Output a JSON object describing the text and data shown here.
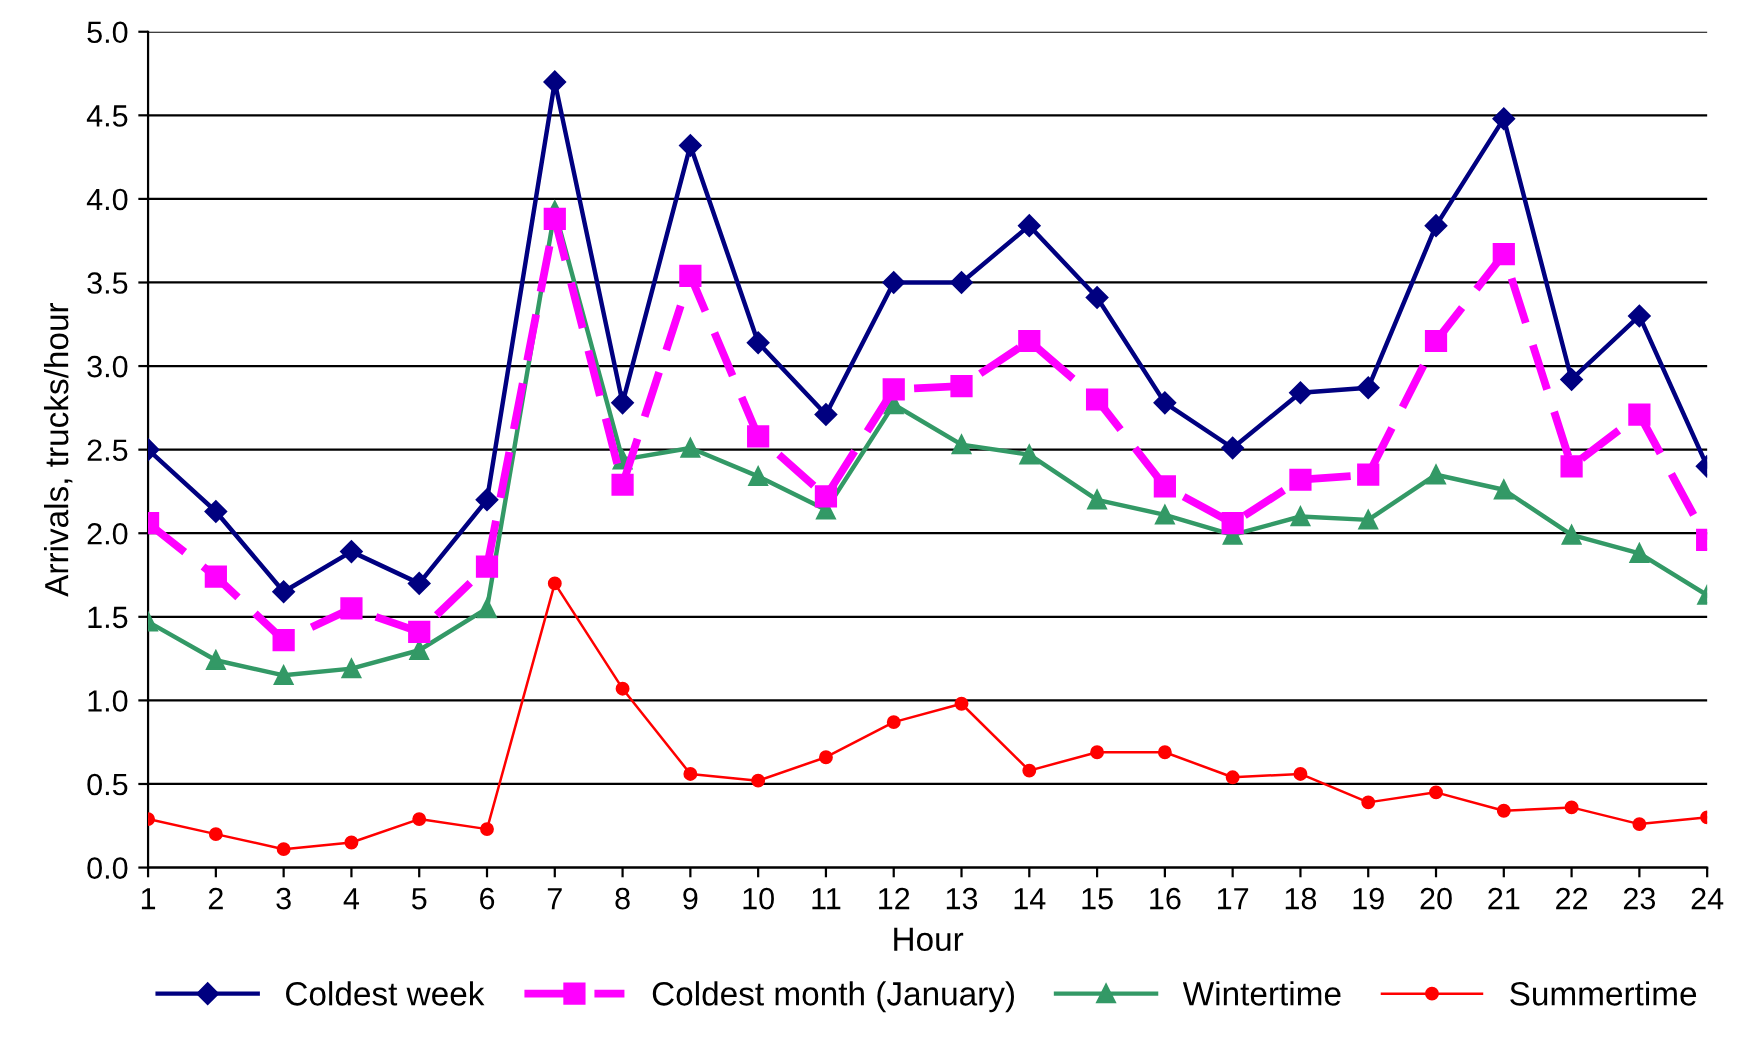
{
  "chart_data": {
    "type": "line",
    "xlabel": "Hour",
    "ylabel": "Arrivals, trucks/hour",
    "x": [
      1,
      2,
      3,
      4,
      5,
      6,
      7,
      8,
      9,
      10,
      11,
      12,
      13,
      14,
      15,
      16,
      17,
      18,
      19,
      20,
      21,
      22,
      23,
      24
    ],
    "xlim": [
      1,
      24
    ],
    "xticks": [
      1,
      2,
      3,
      4,
      5,
      6,
      7,
      8,
      9,
      10,
      11,
      12,
      13,
      14,
      15,
      16,
      17,
      18,
      19,
      20,
      21,
      22,
      23,
      24
    ],
    "ylim": [
      0,
      5
    ],
    "yticks": [
      {
        "value": 0,
        "label": "0.0"
      },
      {
        "value": 0.5,
        "label": "0.5"
      },
      {
        "value": 1,
        "label": "1.0"
      },
      {
        "value": 1.5,
        "label": "1.5"
      },
      {
        "value": 2,
        "label": "2.0"
      },
      {
        "value": 2.5,
        "label": "2.5"
      },
      {
        "value": 3,
        "label": "3.0"
      },
      {
        "value": 3.5,
        "label": "3.5"
      },
      {
        "value": 4,
        "label": "4.0"
      },
      {
        "value": 4.5,
        "label": "4.5"
      },
      {
        "value": 5,
        "label": "5.0"
      }
    ],
    "grid": "y",
    "legend": "bottom",
    "series": [
      {
        "name": "Coldest week",
        "color": "#000080",
        "marker": "diamond",
        "line_style": "solid",
        "values": [
          2.5,
          2.13,
          1.65,
          1.89,
          1.7,
          2.2,
          4.7,
          2.78,
          4.32,
          3.14,
          2.71,
          3.5,
          3.5,
          3.84,
          3.41,
          2.78,
          2.51,
          2.84,
          2.87,
          3.84,
          4.48,
          2.92,
          3.3,
          2.4
        ]
      },
      {
        "name": "Coldest month (January)",
        "color": "#ff00ff",
        "marker": "square",
        "line_style": "dashed",
        "values": [
          2.06,
          1.74,
          1.36,
          1.55,
          1.41,
          1.8,
          3.88,
          2.29,
          3.54,
          2.58,
          2.22,
          2.86,
          2.88,
          3.15,
          2.8,
          2.28,
          2.06,
          2.32,
          2.35,
          3.15,
          3.67,
          2.4,
          2.71,
          1.96
        ]
      },
      {
        "name": "Wintertime",
        "color": "#339966",
        "marker": "triangle",
        "line_style": "solid",
        "values": [
          1.47,
          1.24,
          1.15,
          1.19,
          1.3,
          1.55,
          3.93,
          2.44,
          2.51,
          2.34,
          2.14,
          2.77,
          2.53,
          2.47,
          2.2,
          2.11,
          1.99,
          2.1,
          2.08,
          2.35,
          2.26,
          1.99,
          1.88,
          1.63
        ]
      },
      {
        "name": "Summertime",
        "color": "#ff0000",
        "marker": "circle",
        "line_style": "solid",
        "values": [
          0.29,
          0.2,
          0.11,
          0.15,
          0.29,
          0.23,
          1.7,
          1.07,
          0.56,
          0.52,
          0.66,
          0.87,
          0.98,
          0.58,
          0.69,
          0.69,
          0.54,
          0.56,
          0.39,
          0.45,
          0.34,
          0.36,
          0.26,
          0.3
        ]
      }
    ]
  }
}
